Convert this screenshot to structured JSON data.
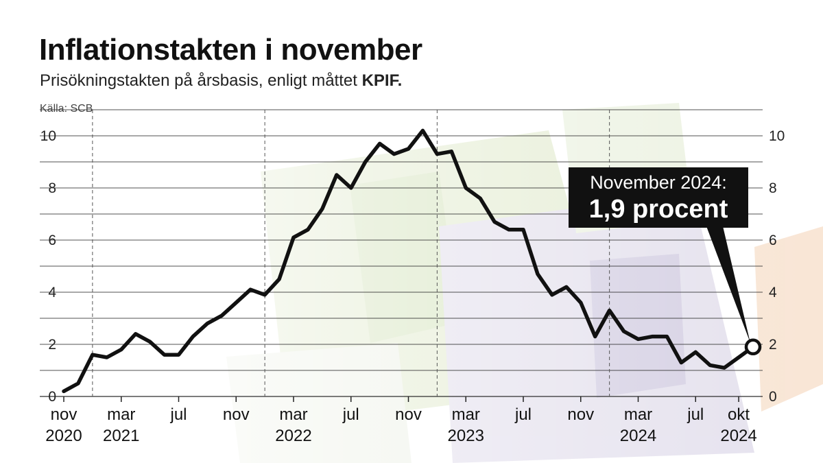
{
  "title": "Inflationstakten i november",
  "subtitle": "Prisökningstakten på årsbasis, enligt måttet",
  "subtitle_bold": "KPIF.",
  "source": "Källa: SCB",
  "callout": {
    "line1": "November 2024:",
    "line2": "1,9 procent"
  },
  "colors": {
    "line": "#111111",
    "grid": "#333333",
    "callout_bg": "#111111",
    "text": "#111111"
  },
  "background": "faded photo of Swedish banknotes (200-kronor green, 20-kronor purple, 50-kronor orange)",
  "chart_data": {
    "type": "line",
    "title": "Inflationstakten i november",
    "subtitle": "Prisökningstakten på årsbasis, enligt måttet KPIF.",
    "ylim": [
      0,
      10
    ],
    "yticks": [
      "0",
      "2",
      "4",
      "6",
      "8",
      "10"
    ],
    "xlim": [
      "2020-11",
      "2024-11"
    ],
    "xticks": [
      {
        "month": "2020-11",
        "label": "nov",
        "year": "2020"
      },
      {
        "month": "2021-03",
        "label": "mar",
        "year": "2021"
      },
      {
        "month": "2021-07",
        "label": "jul",
        "year": ""
      },
      {
        "month": "2021-11",
        "label": "nov",
        "year": ""
      },
      {
        "month": "2022-03",
        "label": "mar",
        "year": "2022"
      },
      {
        "month": "2022-07",
        "label": "jul",
        "year": ""
      },
      {
        "month": "2022-11",
        "label": "nov",
        "year": ""
      },
      {
        "month": "2023-03",
        "label": "mar",
        "year": "2023"
      },
      {
        "month": "2023-07",
        "label": "jul",
        "year": ""
      },
      {
        "month": "2023-11",
        "label": "nov",
        "year": ""
      },
      {
        "month": "2024-03",
        "label": "mar",
        "year": "2024"
      },
      {
        "month": "2024-07",
        "label": "jul",
        "year": ""
      },
      {
        "month": "2024-10",
        "label": "okt",
        "year": "2024"
      }
    ],
    "year_dividers": [
      "2021-01",
      "2022-01",
      "2023-01",
      "2024-01"
    ],
    "grid": true,
    "series": [
      {
        "x": [
          "2020-11",
          "2020-12",
          "2021-01",
          "2021-02",
          "2021-03",
          "2021-04",
          "2021-05",
          "2021-06",
          "2021-07",
          "2021-08",
          "2021-09",
          "2021-10",
          "2021-11",
          "2021-12",
          "2022-01",
          "2022-02",
          "2022-03",
          "2022-04",
          "2022-05",
          "2022-06",
          "2022-07",
          "2022-08",
          "2022-09",
          "2022-10",
          "2022-11",
          "2022-12",
          "2023-01",
          "2023-02",
          "2023-03",
          "2023-04",
          "2023-05",
          "2023-06",
          "2023-07",
          "2023-08",
          "2023-09",
          "2023-10",
          "2023-11",
          "2023-12",
          "2024-01",
          "2024-02",
          "2024-03",
          "2024-04",
          "2024-05",
          "2024-06",
          "2024-07",
          "2024-08",
          "2024-09",
          "2024-10",
          "2024-11"
        ],
        "values": [
          0.2,
          0.5,
          1.6,
          1.5,
          1.8,
          2.4,
          2.1,
          1.6,
          1.6,
          2.3,
          2.8,
          3.1,
          3.6,
          4.1,
          3.9,
          4.5,
          6.1,
          6.4,
          7.2,
          8.5,
          8.0,
          9.0,
          9.7,
          9.3,
          9.5,
          10.2,
          9.3,
          9.4,
          8.0,
          7.6,
          6.7,
          6.4,
          6.4,
          4.7,
          3.9,
          4.2,
          3.6,
          2.3,
          3.3,
          2.5,
          2.2,
          2.3,
          2.3,
          1.3,
          1.7,
          1.2,
          1.1,
          1.5,
          1.9
        ]
      }
    ],
    "highlight": {
      "month": "2024-11",
      "value": 1.9
    }
  }
}
